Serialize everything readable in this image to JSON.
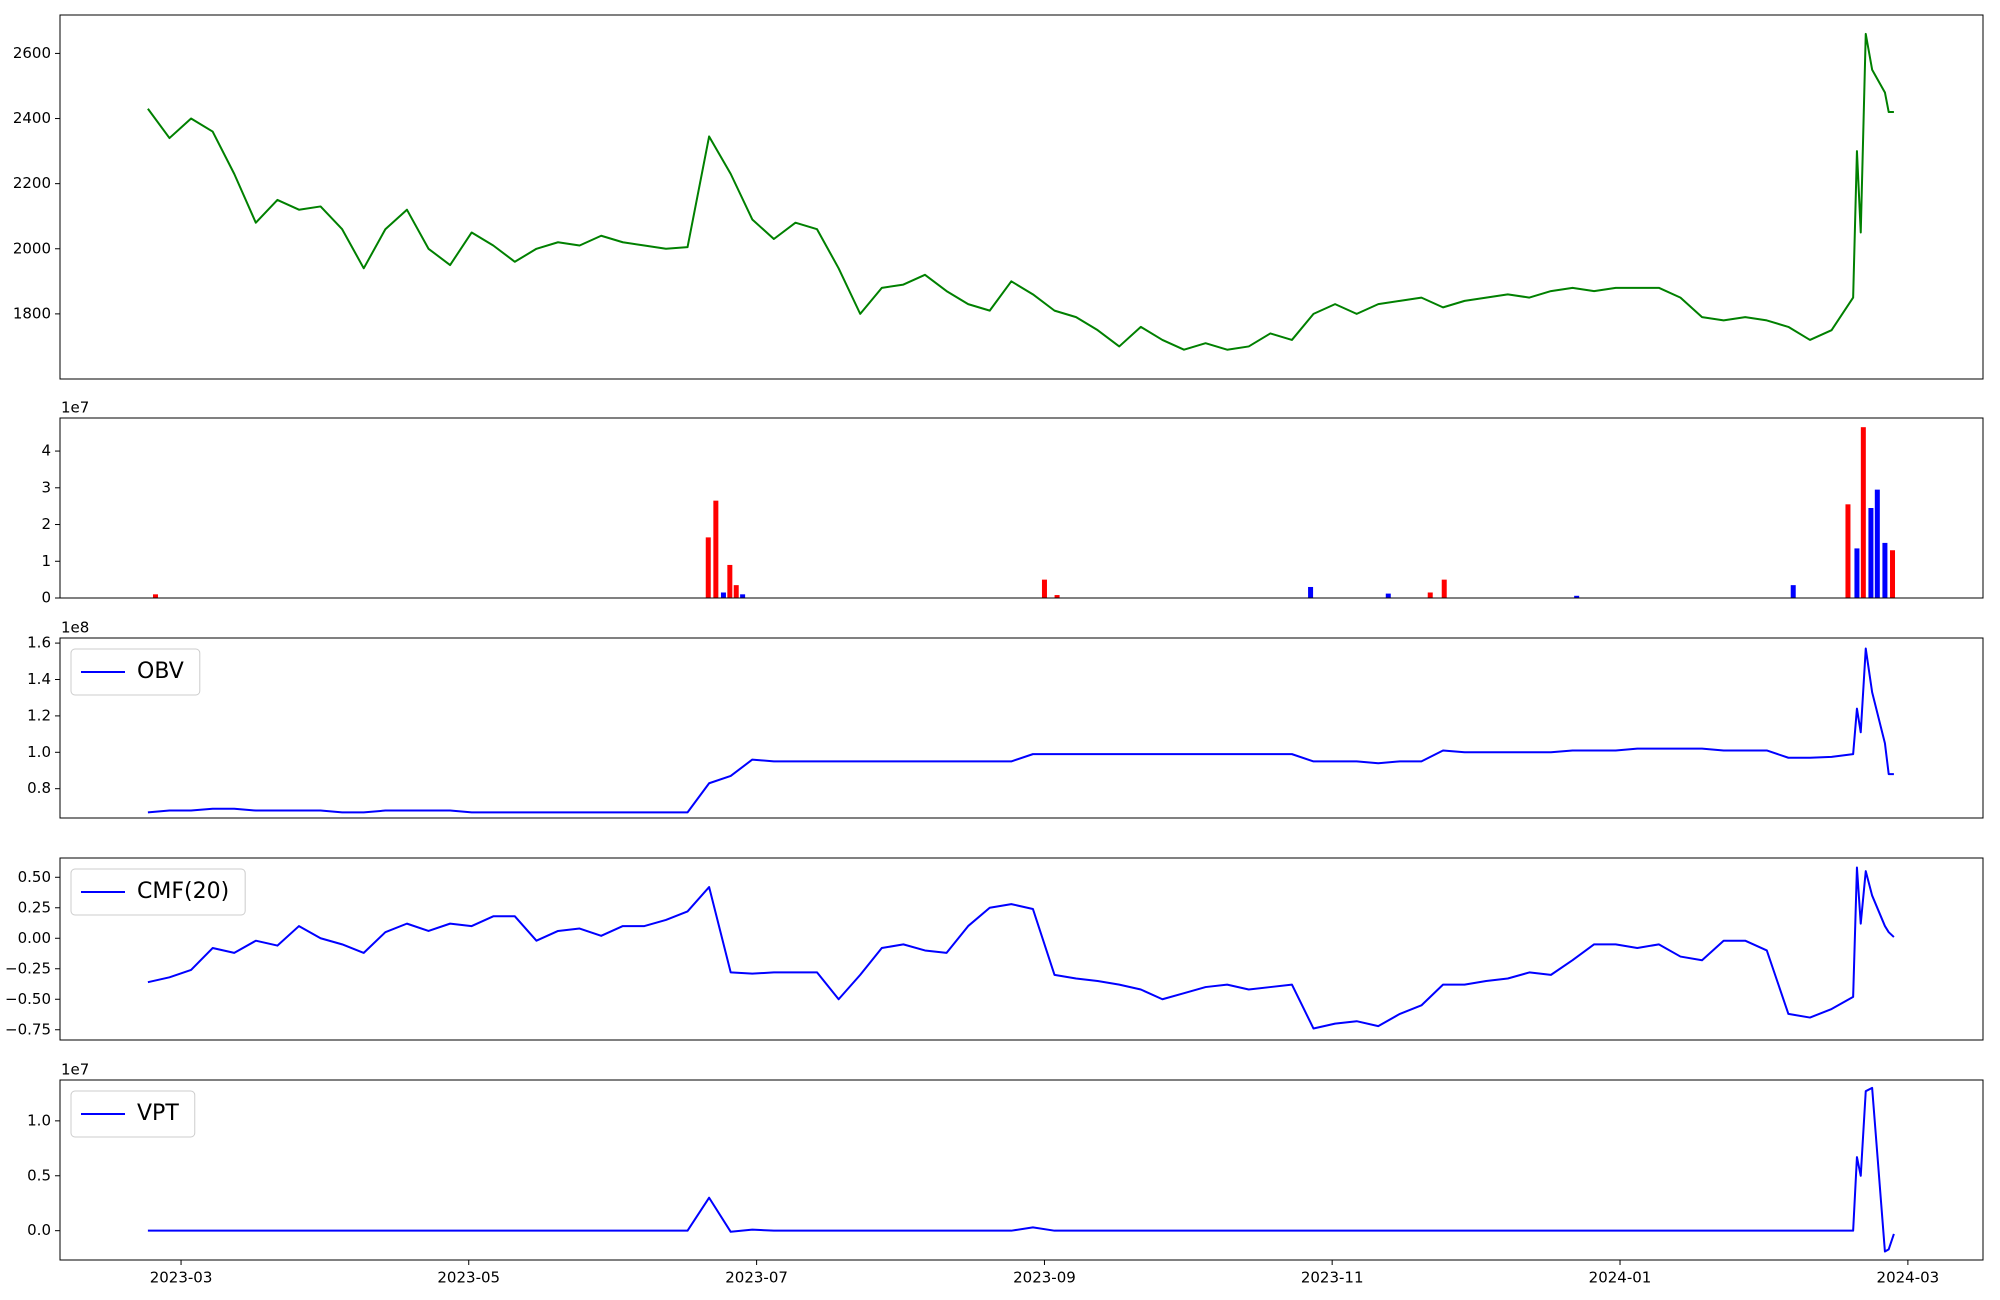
{
  "chart_data": [
    {
      "type": "line",
      "color": "#008000",
      "x": [
        2023.1475,
        2023.16,
        2023.1725,
        2023.185,
        2023.1975,
        2023.21,
        2023.2225,
        2023.235,
        2023.2475,
        2023.26,
        2023.2725,
        2023.285,
        2023.2975,
        2023.31,
        2023.3225,
        2023.335,
        2023.3475,
        2023.36,
        2023.3725,
        2023.385,
        2023.3975,
        2023.41,
        2023.4225,
        2023.435,
        2023.4475,
        2023.46,
        2023.4725,
        2023.485,
        2023.4975,
        2023.51,
        2023.5225,
        2023.535,
        2023.5475,
        2023.56,
        2023.5725,
        2023.585,
        2023.5975,
        2023.61,
        2023.6225,
        2023.635,
        2023.6475,
        2023.66,
        2023.6725,
        2023.685,
        2023.6975,
        2023.71,
        2023.7225,
        2023.735,
        2023.7475,
        2023.76,
        2023.7725,
        2023.785,
        2023.7975,
        2023.81,
        2023.8225,
        2023.835,
        2023.8475,
        2023.86,
        2023.8725,
        2023.885,
        2023.8975,
        2023.91,
        2023.9225,
        2023.935,
        2023.9475,
        2023.96,
        2023.9725,
        2023.985,
        2023.9975,
        2024.01,
        2024.0225,
        2024.035,
        2024.0475,
        2024.06,
        2024.0725,
        2024.085,
        2024.0975,
        2024.11,
        2024.1225,
        2024.135,
        2024.1372,
        2024.1394,
        2024.1423,
        2024.146,
        2024.1534,
        2024.1556,
        2024.1586
      ],
      "values": [
        2430,
        2340,
        2400,
        2360,
        2230,
        2080,
        2150,
        2120,
        2130,
        2060,
        1940,
        2060,
        2120,
        2000,
        1950,
        2050,
        2010,
        1960,
        2000,
        2020,
        2010,
        2040,
        2020,
        2010,
        2000,
        2005,
        2345,
        2230,
        2090,
        2030,
        2080,
        2060,
        1940,
        1800,
        1880,
        1890,
        1920,
        1870,
        1830,
        1810,
        1900,
        1860,
        1810,
        1790,
        1750,
        1700,
        1760,
        1720,
        1690,
        1710,
        1690,
        1700,
        1740,
        1720,
        1800,
        1830,
        1800,
        1830,
        1840,
        1850,
        1820,
        1840,
        1850,
        1860,
        1850,
        1870,
        1880,
        1870,
        1880,
        1880,
        1880,
        1850,
        1790,
        1780,
        1790,
        1780,
        1760,
        1720,
        1750,
        1850,
        2300,
        2050,
        2660,
        2550,
        2480,
        2420,
        2420
      ],
      "xlim": [
        2023.0966,
        2024.2102
      ],
      "ylim": [
        1600,
        2718
      ],
      "yticks": [
        1800,
        2000,
        2200,
        2400,
        2600
      ]
    },
    {
      "type": "bar",
      "offset_text": "1e7",
      "x": [
        2023.1519,
        2023.472,
        2023.4764,
        2023.4808,
        2023.4845,
        2023.4882,
        2023.4919,
        2023.6667,
        2023.674,
        2023.8208,
        2023.8658,
        2023.8901,
        2023.8982,
        2023.9749,
        2024.1003,
        2024.132,
        2024.1372,
        2024.1409,
        2024.1453,
        2024.149,
        2024.1534,
        2024.1578
      ],
      "series": [
        {
          "color": "#ff0000",
          "values": [
            0.1,
            1.65,
            2.65,
            null,
            0.9,
            0.35,
            null,
            0.5,
            0.08,
            null,
            null,
            0.15,
            0.5,
            null,
            null,
            2.55,
            null,
            4.65,
            null,
            null,
            null,
            1.3
          ]
        },
        {
          "color": "#0000ff",
          "values": [
            null,
            null,
            null,
            0.15,
            null,
            null,
            0.1,
            null,
            null,
            0.3,
            0.12,
            null,
            null,
            0.06,
            0.35,
            null,
            1.35,
            null,
            2.45,
            2.95,
            1.5,
            null
          ]
        }
      ],
      "xlim": [
        2023.0966,
        2024.2102
      ],
      "ylim": [
        0,
        4.9
      ],
      "yticks": [
        0,
        1,
        2,
        3,
        4
      ]
    },
    {
      "type": "line",
      "offset_text": "1e8",
      "legend": "upper left",
      "x": [
        2023.1475,
        2023.16,
        2023.1725,
        2023.185,
        2023.1975,
        2023.21,
        2023.2225,
        2023.235,
        2023.2475,
        2023.26,
        2023.2725,
        2023.285,
        2023.2975,
        2023.31,
        2023.3225,
        2023.335,
        2023.3475,
        2023.36,
        2023.3725,
        2023.385,
        2023.3975,
        2023.41,
        2023.4225,
        2023.435,
        2023.4475,
        2023.46,
        2023.4725,
        2023.485,
        2023.4975,
        2023.51,
        2023.5225,
        2023.535,
        2023.5475,
        2023.56,
        2023.5725,
        2023.585,
        2023.5975,
        2023.61,
        2023.6225,
        2023.635,
        2023.6475,
        2023.66,
        2023.6725,
        2023.685,
        2023.6975,
        2023.71,
        2023.7225,
        2023.735,
        2023.7475,
        2023.76,
        2023.7725,
        2023.785,
        2023.7975,
        2023.81,
        2023.8225,
        2023.835,
        2023.8475,
        2023.86,
        2023.8725,
        2023.885,
        2023.8975,
        2023.91,
        2023.9225,
        2023.935,
        2023.9475,
        2023.96,
        2023.9725,
        2023.985,
        2023.9975,
        2024.01,
        2024.0225,
        2024.035,
        2024.0475,
        2024.06,
        2024.0725,
        2024.085,
        2024.0975,
        2024.11,
        2024.1225,
        2024.135,
        2024.1372,
        2024.1394,
        2024.1423,
        2024.146,
        2024.1534,
        2024.1556,
        2024.1586
      ],
      "series": [
        {
          "name": "OBV",
          "color": "#0000ff",
          "values": [
            0.67,
            0.68,
            0.68,
            0.69,
            0.69,
            0.68,
            0.68,
            0.68,
            0.68,
            0.67,
            0.67,
            0.68,
            0.68,
            0.68,
            0.68,
            0.67,
            0.67,
            0.67,
            0.67,
            0.67,
            0.67,
            0.67,
            0.67,
            0.67,
            0.67,
            0.67,
            0.83,
            0.87,
            0.96,
            0.95,
            0.95,
            0.95,
            0.95,
            0.95,
            0.95,
            0.95,
            0.95,
            0.95,
            0.95,
            0.95,
            0.95,
            0.99,
            0.99,
            0.99,
            0.99,
            0.99,
            0.99,
            0.99,
            0.99,
            0.99,
            0.99,
            0.99,
            0.99,
            0.99,
            0.95,
            0.95,
            0.95,
            0.94,
            0.95,
            0.95,
            1.01,
            1.0,
            1.0,
            1.0,
            1.0,
            1.0,
            1.01,
            1.01,
            1.01,
            1.02,
            1.02,
            1.02,
            1.02,
            1.01,
            1.01,
            1.01,
            0.97,
            0.97,
            0.975,
            0.99,
            1.24,
            1.11,
            1.57,
            1.33,
            1.05,
            0.88,
            0.88
          ]
        }
      ],
      "xlim": [
        2023.0966,
        2024.2102
      ],
      "ylim": [
        0.639,
        1.628
      ],
      "yticks": [
        0.8,
        {
          "value": 1,
          "label": "1.0"
        },
        1.2,
        1.4,
        1.6
      ]
    },
    {
      "type": "line",
      "legend": "upper left",
      "x": [
        2023.1475,
        2023.16,
        2023.1725,
        2023.185,
        2023.1975,
        2023.21,
        2023.2225,
        2023.235,
        2023.2475,
        2023.26,
        2023.2725,
        2023.285,
        2023.2975,
        2023.31,
        2023.3225,
        2023.335,
        2023.3475,
        2023.36,
        2023.3725,
        2023.385,
        2023.3975,
        2023.41,
        2023.4225,
        2023.435,
        2023.4475,
        2023.46,
        2023.4725,
        2023.485,
        2023.4975,
        2023.51,
        2023.5225,
        2023.535,
        2023.5475,
        2023.56,
        2023.5725,
        2023.585,
        2023.5975,
        2023.61,
        2023.6225,
        2023.635,
        2023.6475,
        2023.66,
        2023.6725,
        2023.685,
        2023.6975,
        2023.71,
        2023.7225,
        2023.735,
        2023.7475,
        2023.76,
        2023.7725,
        2023.785,
        2023.7975,
        2023.81,
        2023.8225,
        2023.835,
        2023.8475,
        2023.86,
        2023.8725,
        2023.885,
        2023.8975,
        2023.91,
        2023.9225,
        2023.935,
        2023.9475,
        2023.96,
        2023.9725,
        2023.985,
        2023.9975,
        2024.01,
        2024.0225,
        2024.035,
        2024.0475,
        2024.06,
        2024.0725,
        2024.085,
        2024.0975,
        2024.11,
        2024.1225,
        2024.135,
        2024.1372,
        2024.1394,
        2024.1423,
        2024.146,
        2024.1534,
        2024.1556,
        2024.1586
      ],
      "series": [
        {
          "name": "CMF(20)",
          "color": "#0000ff",
          "values": [
            -0.36,
            -0.32,
            -0.26,
            -0.08,
            -0.12,
            -0.02,
            -0.06,
            0.1,
            0.0,
            -0.05,
            -0.12,
            0.05,
            0.12,
            0.06,
            0.12,
            0.1,
            0.18,
            0.18,
            -0.02,
            0.06,
            0.08,
            0.02,
            0.1,
            0.1,
            0.15,
            0.22,
            0.42,
            -0.28,
            -0.29,
            -0.28,
            -0.28,
            -0.28,
            -0.5,
            -0.3,
            -0.08,
            -0.05,
            -0.1,
            -0.12,
            0.1,
            0.25,
            0.28,
            0.24,
            -0.3,
            -0.33,
            -0.35,
            -0.38,
            -0.42,
            -0.5,
            -0.45,
            -0.4,
            -0.38,
            -0.42,
            -0.4,
            -0.38,
            -0.74,
            -0.7,
            -0.68,
            -0.72,
            -0.62,
            -0.55,
            -0.38,
            -0.38,
            -0.35,
            -0.33,
            -0.28,
            -0.3,
            -0.18,
            -0.05,
            -0.05,
            -0.08,
            -0.05,
            -0.15,
            -0.18,
            -0.02,
            -0.02,
            -0.1,
            -0.62,
            -0.65,
            -0.58,
            -0.48,
            0.58,
            0.12,
            0.55,
            0.35,
            0.1,
            0.05,
            0.01
          ]
        }
      ],
      "xlim": [
        2023.0966,
        2024.2102
      ],
      "ylim": [
        -0.834,
        0.658
      ],
      "yticks": [
        {
          "value": -0.75,
          "label": "−0.75"
        },
        {
          "value": -0.5,
          "label": "−0.50"
        },
        {
          "value": -0.25,
          "label": "−0.25"
        },
        {
          "value": 0,
          "label": "0.00"
        },
        0.25,
        {
          "value": 0.5,
          "label": "0.50"
        }
      ]
    },
    {
      "type": "line",
      "offset_text": "1e7",
      "legend": "upper left",
      "x": [
        2023.1475,
        2023.16,
        2023.1725,
        2023.185,
        2023.1975,
        2023.21,
        2023.2225,
        2023.235,
        2023.2475,
        2023.26,
        2023.2725,
        2023.285,
        2023.2975,
        2023.31,
        2023.3225,
        2023.335,
        2023.3475,
        2023.36,
        2023.3725,
        2023.385,
        2023.3975,
        2023.41,
        2023.4225,
        2023.435,
        2023.4475,
        2023.46,
        2023.4725,
        2023.485,
        2023.4975,
        2023.51,
        2023.5225,
        2023.535,
        2023.5475,
        2023.56,
        2023.5725,
        2023.585,
        2023.5975,
        2023.61,
        2023.6225,
        2023.635,
        2023.6475,
        2023.66,
        2023.6725,
        2023.685,
        2023.6975,
        2023.71,
        2023.7225,
        2023.735,
        2023.7475,
        2023.76,
        2023.7725,
        2023.785,
        2023.7975,
        2023.81,
        2023.8225,
        2023.835,
        2023.8475,
        2023.86,
        2023.8725,
        2023.885,
        2023.8975,
        2023.91,
        2023.9225,
        2023.935,
        2023.9475,
        2023.96,
        2023.9725,
        2023.985,
        2023.9975,
        2024.01,
        2024.0225,
        2024.035,
        2024.0475,
        2024.06,
        2024.0725,
        2024.085,
        2024.0975,
        2024.11,
        2024.1225,
        2024.135,
        2024.1372,
        2024.1394,
        2024.1423,
        2024.146,
        2024.1534,
        2024.1556,
        2024.1586
      ],
      "series": [
        {
          "name": "VPT",
          "color": "#0000ff",
          "values": [
            0,
            0,
            0,
            0,
            0,
            0,
            0,
            0,
            0,
            0,
            0,
            0,
            0,
            0,
            0,
            0,
            0,
            0,
            0,
            0,
            0,
            0,
            0,
            0,
            0,
            0,
            0.3,
            -0.01,
            0.01,
            0,
            0,
            0,
            0,
            0,
            0,
            0,
            0,
            0,
            0,
            0,
            0,
            0.03,
            0,
            0,
            0,
            0,
            0,
            0,
            0,
            0,
            0,
            0,
            0,
            0,
            0,
            0,
            0,
            0,
            0,
            0,
            0,
            0,
            0,
            0,
            0,
            0,
            0,
            0,
            0,
            0,
            0,
            0,
            0,
            0,
            0,
            0,
            0,
            0,
            0,
            0.0,
            0.67,
            0.5,
            1.27,
            1.3,
            -0.19,
            -0.17,
            -0.03
          ]
        }
      ],
      "xlim": [
        2023.0966,
        2024.2102
      ],
      "ylim": [
        -0.267,
        1.372
      ],
      "yticks": [
        {
          "value": 0,
          "label": "0.0"
        },
        0.5,
        {
          "value": 1,
          "label": "1.0"
        }
      ],
      "xticks": [
        {
          "value": 2023.1667,
          "label": "2023-03"
        },
        {
          "value": 2023.3333,
          "label": "2023-05"
        },
        {
          "value": 2023.5,
          "label": "2023-07"
        },
        {
          "value": 2023.6667,
          "label": "2023-09"
        },
        {
          "value": 2023.8333,
          "label": "2023-11"
        },
        {
          "value": 2024.0,
          "label": "2024-01"
        },
        {
          "value": 2024.1667,
          "label": "2024-03"
        }
      ]
    }
  ]
}
